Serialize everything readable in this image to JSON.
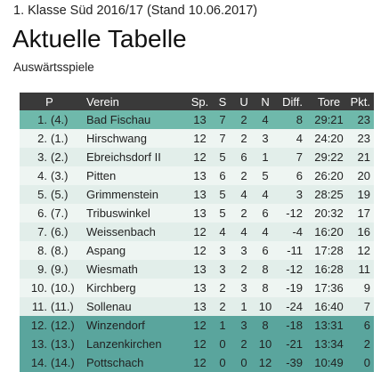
{
  "header": {
    "subtitle": "1. Klasse Süd 2016/17 (Stand 10.06.2017)",
    "title": "Aktuelle Tabelle",
    "section": "Auswärtsspiele"
  },
  "table": {
    "columns": {
      "pos": "P",
      "team": "Verein",
      "played": "Sp.",
      "won": "S",
      "draw": "U",
      "lost": "N",
      "diff": "Diff.",
      "goals": "Tore",
      "points": "Pkt."
    },
    "rows": [
      {
        "pos": "1.",
        "prev": "(4.)",
        "team": "Bad Fischau",
        "played": "13",
        "won": "7",
        "draw": "2",
        "lost": "4",
        "diff": "8",
        "goals": "29:21",
        "points": "23"
      },
      {
        "pos": "2.",
        "prev": "(1.)",
        "team": "Hirschwang",
        "played": "12",
        "won": "7",
        "draw": "2",
        "lost": "3",
        "diff": "4",
        "goals": "24:20",
        "points": "23"
      },
      {
        "pos": "3.",
        "prev": "(2.)",
        "team": "Ebreichsdorf II",
        "played": "12",
        "won": "5",
        "draw": "6",
        "lost": "1",
        "diff": "7",
        "goals": "29:22",
        "points": "21"
      },
      {
        "pos": "4.",
        "prev": "(3.)",
        "team": "Pitten",
        "played": "13",
        "won": "6",
        "draw": "2",
        "lost": "5",
        "diff": "6",
        "goals": "26:20",
        "points": "20"
      },
      {
        "pos": "5.",
        "prev": "(5.)",
        "team": "Grimmenstein",
        "played": "13",
        "won": "5",
        "draw": "4",
        "lost": "4",
        "diff": "3",
        "goals": "28:25",
        "points": "19"
      },
      {
        "pos": "6.",
        "prev": "(7.)",
        "team": "Tribuswinkel",
        "played": "13",
        "won": "5",
        "draw": "2",
        "lost": "6",
        "diff": "-12",
        "goals": "20:32",
        "points": "17"
      },
      {
        "pos": "7.",
        "prev": "(6.)",
        "team": "Weissenbach",
        "played": "12",
        "won": "4",
        "draw": "4",
        "lost": "4",
        "diff": "-4",
        "goals": "16:20",
        "points": "16"
      },
      {
        "pos": "8.",
        "prev": "(8.)",
        "team": "Aspang",
        "played": "12",
        "won": "3",
        "draw": "3",
        "lost": "6",
        "diff": "-11",
        "goals": "17:28",
        "points": "12"
      },
      {
        "pos": "9.",
        "prev": "(9.)",
        "team": "Wiesmath",
        "played": "13",
        "won": "3",
        "draw": "2",
        "lost": "8",
        "diff": "-12",
        "goals": "16:28",
        "points": "11"
      },
      {
        "pos": "10.",
        "prev": "(10.)",
        "team": "Kirchberg",
        "played": "13",
        "won": "2",
        "draw": "3",
        "lost": "8",
        "diff": "-19",
        "goals": "17:36",
        "points": "9"
      },
      {
        "pos": "11.",
        "prev": "(11.)",
        "team": "Sollenau",
        "played": "13",
        "won": "2",
        "draw": "1",
        "lost": "10",
        "diff": "-24",
        "goals": "16:40",
        "points": "7"
      },
      {
        "pos": "12.",
        "prev": "(12.)",
        "team": "Winzendorf",
        "played": "12",
        "won": "1",
        "draw": "3",
        "lost": "8",
        "diff": "-18",
        "goals": "13:31",
        "points": "6"
      },
      {
        "pos": "13.",
        "prev": "(13.)",
        "team": "Lanzenkirchen",
        "played": "12",
        "won": "0",
        "draw": "2",
        "lost": "10",
        "diff": "-21",
        "goals": "13:34",
        "points": "2"
      },
      {
        "pos": "14.",
        "prev": "(14.)",
        "team": "Pottschach",
        "played": "12",
        "won": "0",
        "draw": "0",
        "lost": "12",
        "diff": "-39",
        "goals": "10:49",
        "points": "0"
      }
    ],
    "row_colors": {
      "promotion": "#6fb9ab",
      "light": "#eef5f2",
      "alt": "#e2eeea",
      "relegation": "#5aa59d",
      "header": "#3a3a3a"
    }
  }
}
